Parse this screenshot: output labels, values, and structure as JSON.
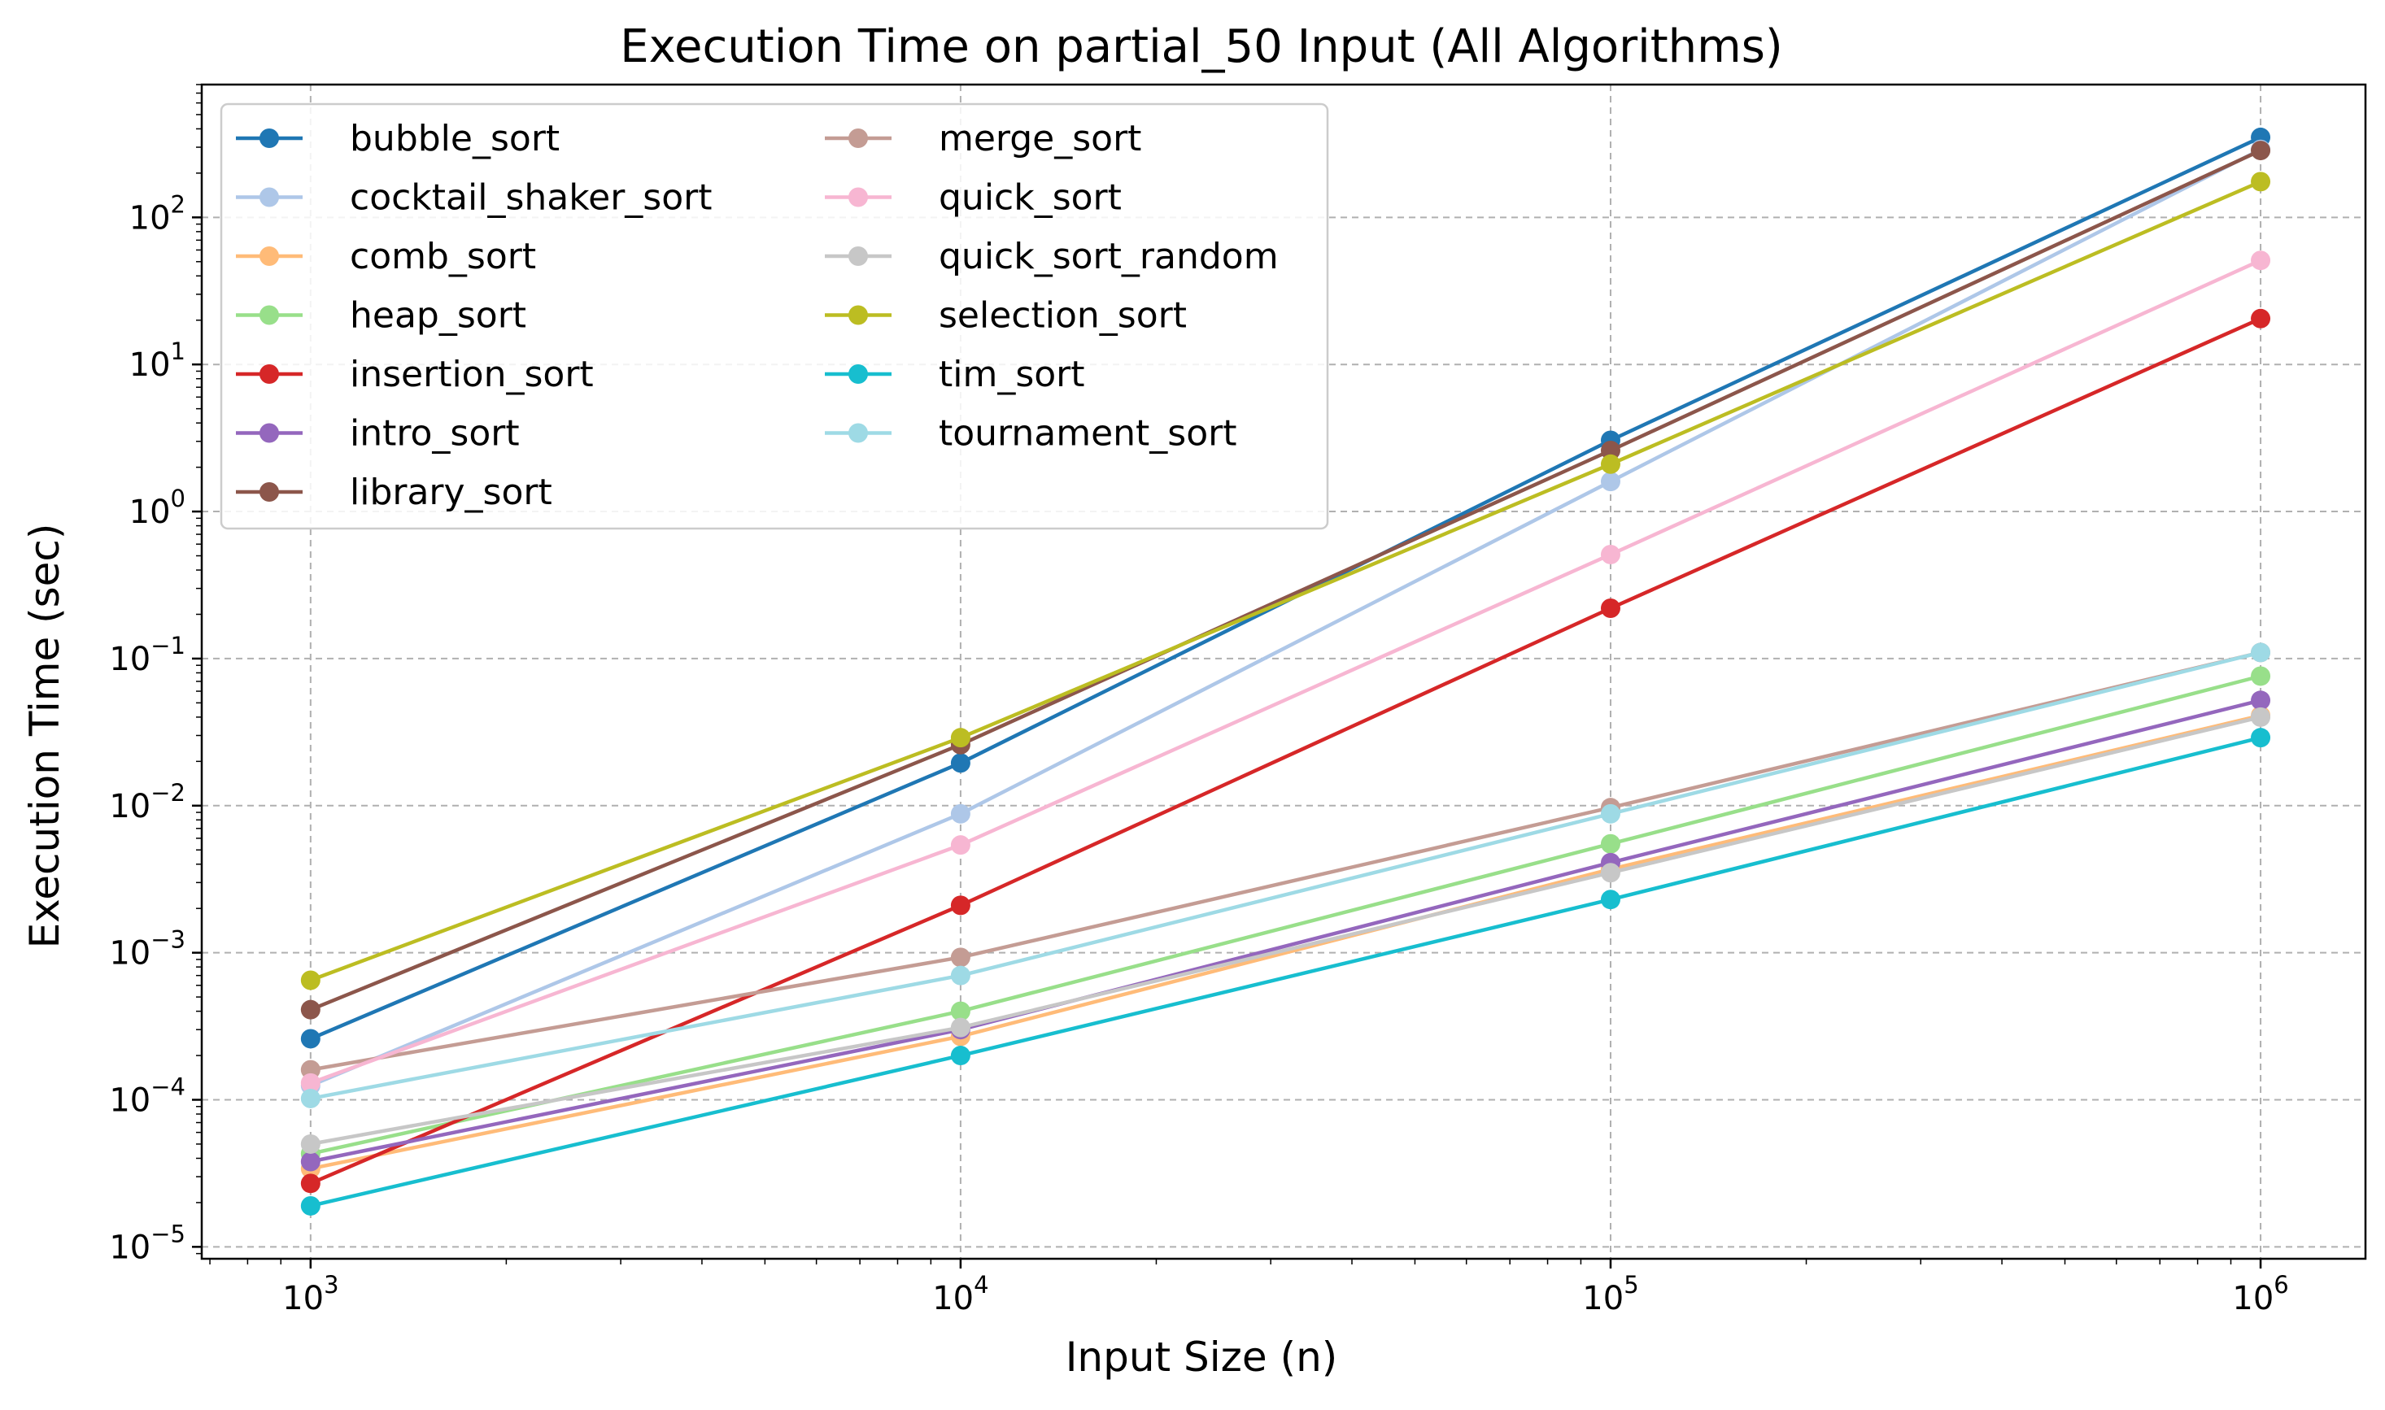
{
  "chart_data": {
    "type": "line",
    "title": "Execution Time on partial_50 Input (All Algorithms)",
    "xlabel": "Input Size (n)",
    "ylabel": "Execution Time (sec)",
    "x_scale": "log",
    "y_scale": "log",
    "x": [
      1000,
      10000,
      100000,
      1000000
    ],
    "xlim": [
      680,
      1450000
    ],
    "ylim": [
      8.3e-06,
      800
    ],
    "x_ticks": [
      {
        "value": 1000,
        "base": "10",
        "exp": "3"
      },
      {
        "value": 10000,
        "base": "10",
        "exp": "4"
      },
      {
        "value": 100000,
        "base": "10",
        "exp": "5"
      },
      {
        "value": 1000000,
        "base": "10",
        "exp": "6"
      }
    ],
    "y_ticks": [
      {
        "value": 1e-05,
        "base": "10",
        "exp": "−5"
      },
      {
        "value": 0.0001,
        "base": "10",
        "exp": "−4"
      },
      {
        "value": 0.001,
        "base": "10",
        "exp": "−3"
      },
      {
        "value": 0.01,
        "base": "10",
        "exp": "−2"
      },
      {
        "value": 0.1,
        "base": "10",
        "exp": "−1"
      },
      {
        "value": 1,
        "base": "10",
        "exp": "0"
      },
      {
        "value": 10,
        "base": "10",
        "exp": "1"
      },
      {
        "value": 100,
        "base": "10",
        "exp": "2"
      }
    ],
    "grid": true,
    "legend_position": "top-left",
    "legend_columns": 2,
    "series": [
      {
        "name": "bubble_sort",
        "color": "#1f77b4",
        "values": [
          0.00026,
          0.0195,
          3.05,
          350
        ]
      },
      {
        "name": "cocktail_shaker_sort",
        "color": "#aec7e8",
        "values": [
          0.000125,
          0.0088,
          1.6,
          290
        ]
      },
      {
        "name": "comb_sort",
        "color": "#ffbb78",
        "values": [
          3.4e-05,
          0.00027,
          0.0037,
          0.041
        ]
      },
      {
        "name": "heap_sort",
        "color": "#98df8a",
        "values": [
          4.3e-05,
          0.0004,
          0.0055,
          0.076
        ]
      },
      {
        "name": "insertion_sort",
        "color": "#d62728",
        "values": [
          2.7e-05,
          0.0021,
          0.22,
          20.5
        ]
      },
      {
        "name": "intro_sort",
        "color": "#9467bd",
        "values": [
          3.8e-05,
          0.0003,
          0.0041,
          0.052
        ]
      },
      {
        "name": "library_sort",
        "color": "#8c564b",
        "values": [
          0.00041,
          0.026,
          2.6,
          285
        ]
      },
      {
        "name": "merge_sort",
        "color": "#c49c94",
        "values": [
          0.00016,
          0.00093,
          0.0097,
          0.11
        ]
      },
      {
        "name": "quick_sort",
        "color": "#f7b6d2",
        "values": [
          0.00013,
          0.0054,
          0.51,
          51
        ]
      },
      {
        "name": "quick_sort_random",
        "color": "#c7c7c7",
        "values": [
          5e-05,
          0.00031,
          0.0035,
          0.04
        ]
      },
      {
        "name": "selection_sort",
        "color": "#bcbd22",
        "values": [
          0.00065,
          0.029,
          2.1,
          175
        ]
      },
      {
        "name": "tim_sort",
        "color": "#17becf",
        "values": [
          1.9e-05,
          0.0002,
          0.0023,
          0.029
        ]
      },
      {
        "name": "tournament_sort",
        "color": "#9edae5",
        "values": [
          0.000102,
          0.0007,
          0.0088,
          0.11
        ]
      }
    ]
  }
}
